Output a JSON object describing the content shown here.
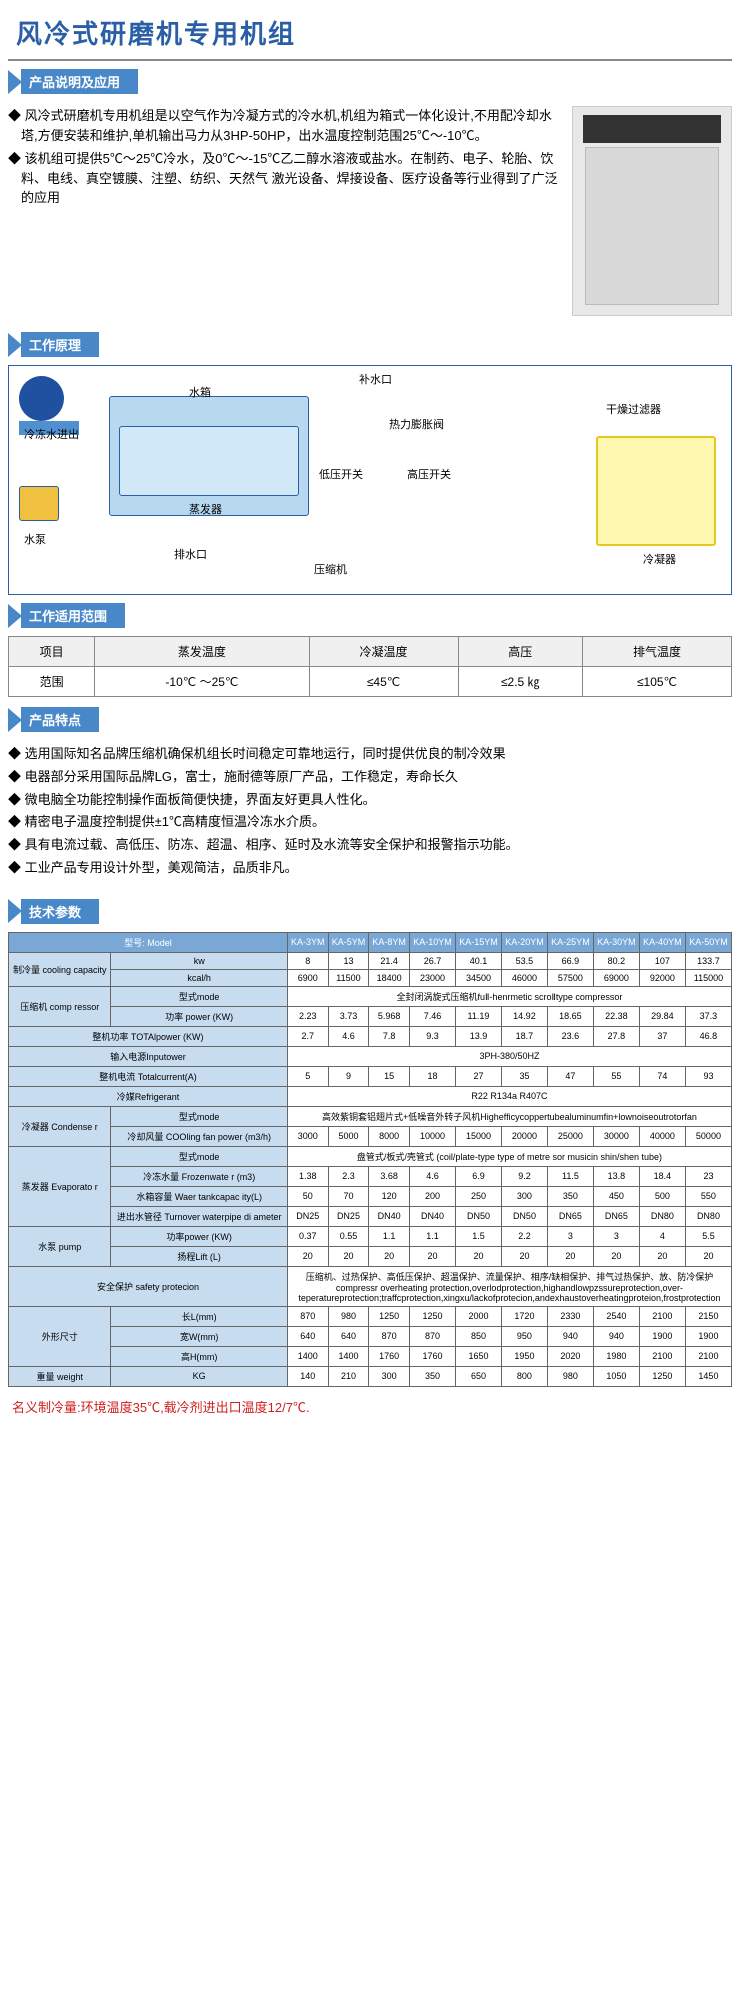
{
  "page_title": "风冷式研磨机专用机组",
  "sections": {
    "s1": "产品说明及应用",
    "s2": "工作原理",
    "s3": "工作适用范围",
    "s4": "产品特点",
    "s5": "技术参数"
  },
  "description": {
    "p1": "◆ 风冷式研磨机专用机组是以空气作为冷凝方式的冷水机,机组为箱式一体化设计,不用配冷却水塔,方便安装和维护,单机输出马力从3HP-50HP，出水温度控制范围25℃～-10℃。",
    "p2": "◆ 该机组可提供5℃～25℃冷水，及0℃～-15℃乙二醇水溶液或盐水。在制药、电子、轮胎、饮料、电线、真空镀膜、注塑、纺织、天然气 激光设备、焊接设备、医疗设备等行业得到了广泛的应用"
  },
  "diagram_labels": {
    "tank": "水箱",
    "inlet": "冷冻水进出",
    "fill": "补水口",
    "evap": "蒸发器",
    "drain": "排水口",
    "pump": "水泵",
    "lps": "低压开关",
    "hps": "高压开关",
    "comp": "压缩机",
    "valve": "热力膨胀阀",
    "filter": "干燥过滤器",
    "cond": "冷凝器"
  },
  "scope": {
    "headers": [
      "项目",
      "蒸发温度",
      "冷凝温度",
      "高压",
      "排气温度"
    ],
    "row_label": "范围",
    "values": [
      "-10℃ ～25℃",
      "≤45℃",
      "≤2.5 ㎏",
      "≤105℃"
    ]
  },
  "features": {
    "f1": "◆ 选用国际知名品牌压缩机确保机组长时间稳定可靠地运行，同时提供优良的制冷效果",
    "f2": "◆ 电器部分采用国际品牌LG，富士，施耐德等原厂产品，工作稳定，寿命长久",
    "f3": "◆ 微电脑全功能控制操作面板简便快捷，界面友好更具人性化。",
    "f4": "◆ 精密电子温度控制提供±1℃高精度恒温冷冻水介质。",
    "f5": "◆ 具有电流过载、高低压、防冻、超温、相序、延时及水流等安全保护和报警指示功能。",
    "f6": "◆ 工业产品专用设计外型，美观简洁，品质非凡。"
  },
  "spec": {
    "model_label": "型号: Model",
    "models": [
      "KA-3YM",
      "KA-5YM",
      "KA-8YM",
      "KA-10YM",
      "KA-15YM",
      "KA-20YM",
      "KA-25YM",
      "KA-30YM",
      "KA-40YM",
      "KA-50YM"
    ],
    "capacity_label": "制冷量\ncooling\ncapacity",
    "cap_kw_label": "kw",
    "cap_kw": [
      "8",
      "13",
      "21.4",
      "26.7",
      "40.1",
      "53.5",
      "66.9",
      "80.2",
      "107",
      "133.7"
    ],
    "cap_kcal_label": "kcal/h",
    "cap_kcal": [
      "6900",
      "11500",
      "18400",
      "23000",
      "34500",
      "46000",
      "57500",
      "69000",
      "92000",
      "115000"
    ],
    "compressor_label": "压缩机\ncomp\nressor",
    "mode_label": "型式mode",
    "comp_mode": "全封闭涡旋式压缩机fuⅡ-henrmetic scroⅡtype compressor",
    "power_label": "功率\npower\n(KW)",
    "comp_power": [
      "2.23",
      "3.73",
      "5.968",
      "7.46",
      "11.19",
      "14.92",
      "18.65",
      "22.38",
      "29.84",
      "37.3"
    ],
    "total_power_label": "整机功率\nTOTAlpower\n(KW)",
    "total_power": [
      "2.7",
      "4.6",
      "7.8",
      "9.3",
      "13.9",
      "18.7",
      "23.6",
      "27.8",
      "37",
      "46.8"
    ],
    "input_power_label": "输入电源Inputower",
    "input_power": "3PH-380/50HZ",
    "total_current_label": "整机电流\nTotalcurrent(A)",
    "total_current": [
      "5",
      "9",
      "15",
      "18",
      "27",
      "35",
      "47",
      "55",
      "74",
      "93"
    ],
    "refrigerant_label": "冷媒Refrigerant",
    "refrigerant": "R22 R134a R407C",
    "condenser_label": "冷凝器\nCondense\nr",
    "cond_mode": "高效紫铜套铝翅片式+低噪音外转子风机Highefficycoppertubealuminumfin+lownoiseoutrotorfan",
    "cond_fan_label": "冷却风量\nCOOling\nfan power\n(m3/h)",
    "cond_fan": [
      "3000",
      "5000",
      "8000",
      "10000",
      "15000",
      "20000",
      "25000",
      "30000",
      "40000",
      "50000"
    ],
    "evaporator_label": "蒸发器\nEvaporato\nr",
    "evap_mode": "盘管式/板式/壳管式 (coil/plate-type type of metre sor musicin shin/shen tube)",
    "frozen_label": "冷冻水量\nFrozenwate\nr (m3)",
    "frozen": [
      "1.38",
      "2.3",
      "3.68",
      "4.6",
      "6.9",
      "9.2",
      "11.5",
      "13.8",
      "18.4",
      "23"
    ],
    "tank_label": "水箱容量\nWaer\ntankcapac\nity(L)",
    "tank": [
      "50",
      "70",
      "120",
      "200",
      "250",
      "300",
      "350",
      "450",
      "500",
      "550"
    ],
    "pipe_label": "进出水管径\nTurnover\nwaterpipe\ndi ameter",
    "pipe": [
      "DN25",
      "DN25",
      "DN40",
      "DN40",
      "DN50",
      "DN50",
      "DN65",
      "DN65",
      "DN80",
      "DN80"
    ],
    "pump_label": "水泵\npump",
    "pump_power_label": "功率power\n(KW)",
    "pump_power": [
      "0.37",
      "0.55",
      "1.1",
      "1.1",
      "1.5",
      "2.2",
      "3",
      "3",
      "4",
      "5.5"
    ],
    "lift_label": "扬程Lift\n(L)",
    "lift": [
      "20",
      "20",
      "20",
      "20",
      "20",
      "20",
      "20",
      "20",
      "20",
      "20"
    ],
    "safety_label": "安全保护\nsafety protecion",
    "safety_value": "压缩机、过热保护、高低压保护、超温保护、流量保护、相序/缺相保护、排气过热保护、放、防冷保护\ncompressr overheating protection,overlodprotection,highandlowpzssureprotection,over-\nteperatureprotection;traffcprotection,xingxu/lackofprotecion,andexhaustoverheatingproteion,frostprotection",
    "dim_label": "外形尺寸",
    "length_label": "长L(mm)",
    "length": [
      "870",
      "980",
      "1250",
      "1250",
      "2000",
      "1720",
      "2330",
      "2540",
      "2100",
      "2150"
    ],
    "width_label": "宽W(mm)",
    "width": [
      "640",
      "640",
      "870",
      "870",
      "850",
      "950",
      "940",
      "940",
      "1900",
      "1900"
    ],
    "height_label": "高H(mm)",
    "height": [
      "1400",
      "1400",
      "1760",
      "1760",
      "1650",
      "1950",
      "2020",
      "1980",
      "2100",
      "2100"
    ],
    "weight_label": "重量\nweight",
    "kg_label": "KG",
    "weight": [
      "140",
      "210",
      "300",
      "350",
      "650",
      "800",
      "980",
      "1050",
      "1250",
      "1450"
    ]
  },
  "footnote": "名义制冷量:环境温度35℃,载冷剂进出口温度12/7℃.",
  "colors": {
    "primary_blue": "#2a5fa5",
    "header_blue": "#4888c8",
    "table_header": "#7aa8d6",
    "table_label": "#c8dcf0",
    "red_note": "#d02020"
  }
}
